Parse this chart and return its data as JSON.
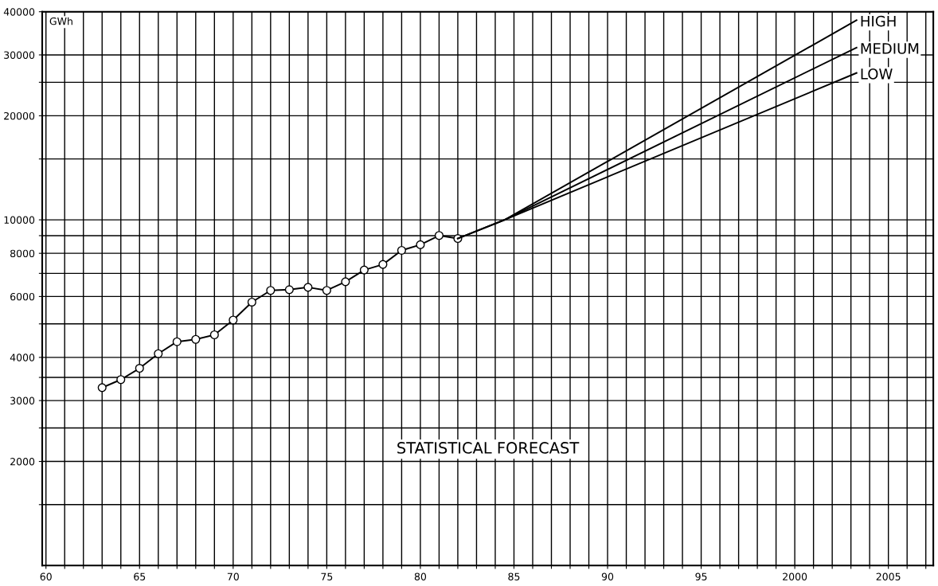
{
  "chart_data": {
    "type": "line",
    "ylabel": "GWh",
    "log": true,
    "grid": true,
    "legend": false,
    "annotations": [
      "STATISTICAL FORECAST"
    ],
    "xlim": [
      1959.8,
      2007.4
    ],
    "ylim": [
      1000,
      40000
    ],
    "xticks": [
      {
        "value": 1960,
        "label": "60"
      },
      {
        "value": 1961,
        "label": null
      },
      {
        "value": 1962,
        "label": null
      },
      {
        "value": 1963,
        "label": null
      },
      {
        "value": 1964,
        "label": null
      },
      {
        "value": 1965,
        "label": "65"
      },
      {
        "value": 1966,
        "label": null
      },
      {
        "value": 1967,
        "label": null
      },
      {
        "value": 1968,
        "label": null
      },
      {
        "value": 1969,
        "label": null
      },
      {
        "value": 1970,
        "label": "70"
      },
      {
        "value": 1971,
        "label": null
      },
      {
        "value": 1972,
        "label": null
      },
      {
        "value": 1973,
        "label": null
      },
      {
        "value": 1974,
        "label": null
      },
      {
        "value": 1975,
        "label": "75"
      },
      {
        "value": 1976,
        "label": null
      },
      {
        "value": 1977,
        "label": null
      },
      {
        "value": 1978,
        "label": null
      },
      {
        "value": 1979,
        "label": null
      },
      {
        "value": 1980,
        "label": "80"
      },
      {
        "value": 1981,
        "label": null
      },
      {
        "value": 1982,
        "label": null
      },
      {
        "value": 1983,
        "label": null
      },
      {
        "value": 1984,
        "label": null
      },
      {
        "value": 1985,
        "label": "85"
      },
      {
        "value": 1986,
        "label": null
      },
      {
        "value": 1987,
        "label": null
      },
      {
        "value": 1988,
        "label": null
      },
      {
        "value": 1989,
        "label": null
      },
      {
        "value": 1990,
        "label": "90"
      },
      {
        "value": 1991,
        "label": null
      },
      {
        "value": 1992,
        "label": null
      },
      {
        "value": 1993,
        "label": null
      },
      {
        "value": 1994,
        "label": null
      },
      {
        "value": 1995,
        "label": "95"
      },
      {
        "value": 1996,
        "label": null
      },
      {
        "value": 1997,
        "label": null
      },
      {
        "value": 1998,
        "label": null
      },
      {
        "value": 1999,
        "label": null
      },
      2000,
      {
        "value": 2001,
        "label": null
      },
      {
        "value": 2002,
        "label": null
      },
      {
        "value": 2003,
        "label": null
      },
      {
        "value": 2004,
        "label": null
      },
      2005,
      {
        "value": 2006,
        "label": null
      },
      {
        "value": 2007,
        "label": null
      }
    ],
    "yticks": [
      {
        "value": 1500,
        "label": null
      },
      2000,
      {
        "value": 2500,
        "label": null
      },
      3000,
      {
        "value": 3500,
        "label": null
      },
      4000,
      {
        "value": 5000,
        "label": null
      },
      6000,
      {
        "value": 7000,
        "label": null
      },
      8000,
      {
        "value": 9000,
        "label": null
      },
      10000,
      {
        "value": 15000,
        "label": null
      },
      20000,
      {
        "value": 25000,
        "label": null
      },
      30000,
      40000
    ],
    "series": [
      {
        "color": "#000000",
        "marker": "circle",
        "x": [
          1963,
          1964,
          1965,
          1966,
          1967,
          1968,
          1969,
          1970,
          1971,
          1972,
          1973,
          1974,
          1975,
          1976,
          1977,
          1978,
          1979,
          1980,
          1981,
          1982
        ],
        "values": [
          3270,
          3450,
          3720,
          4100,
          4440,
          4510,
          4650,
          5130,
          5780,
          6250,
          6280,
          6380,
          6250,
          6620,
          7160,
          7430,
          8160,
          8470,
          9010,
          8830
        ]
      },
      {
        "name": "HIGH",
        "color": "#000000",
        "marker": "none",
        "x": [
          1982,
          1984.5,
          2003.3
        ],
        "values": [
          8830,
          10000,
          37800
        ]
      },
      {
        "name": "MEDIUM",
        "color": "#000000",
        "marker": "none",
        "x": [
          1982,
          1984.5,
          2003.3
        ],
        "values": [
          8830,
          10000,
          31500
        ]
      },
      {
        "name": "LOW",
        "color": "#000000",
        "marker": "none",
        "x": [
          1982,
          1984.5,
          2003.3
        ],
        "values": [
          8830,
          10000,
          26600
        ]
      }
    ]
  }
}
